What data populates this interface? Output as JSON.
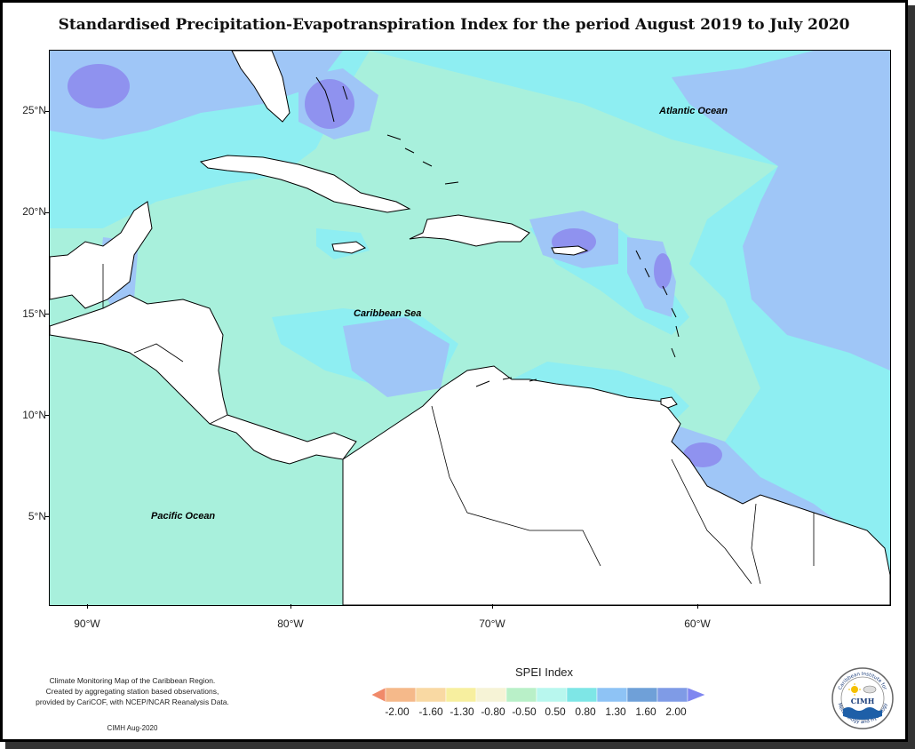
{
  "title": "Standardised Precipitation-Evapotranspiration Index for the period August 2019 to July 2020",
  "map": {
    "labels": {
      "atlantic": "Atlantic Ocean",
      "caribbean": "Caribbean Sea",
      "pacific": "Pacific Ocean"
    },
    "lat_ticks": [
      "25°N",
      "20°N",
      "15°N",
      "10°N",
      "5°N"
    ],
    "lon_ticks": [
      "90°W",
      "80°W",
      "70°W",
      "60°W"
    ]
  },
  "legend": {
    "title": "SPEI Index",
    "labels": [
      "-2.00",
      "-1.60",
      "-1.30",
      "-0.80",
      "-0.50",
      "0.50",
      "0.80",
      "1.30",
      "1.60",
      "2.00"
    ],
    "colors": [
      "#f08a6a",
      "#f5b98a",
      "#f9d9a3",
      "#f7ef9f",
      "#f6f3d6",
      "#b9f0c8",
      "#b8f7ee",
      "#7ee6e6",
      "#8ec3f5",
      "#6fa0d8",
      "#7f86f0"
    ]
  },
  "credit": {
    "line1": "Climate Monitoring Map of the Caribbean Region.",
    "line2": "Created by aggregating station based observations,",
    "line3": "provided by CariCOF, with NCEP/NCAR Reanalysis Data.",
    "date": "CIMH Aug-2020"
  },
  "logo": {
    "name": "CIMH",
    "text_top": "Caribbean Institute for",
    "text_bottom": "Meteorology and Hydrology"
  },
  "colors": {
    "wet_light": "#a8f0dc",
    "wet_cyan": "#8eeef2",
    "wet_blue": "#9fc6f7",
    "wet_violet": "#8f92ef",
    "dry": "#f07070",
    "land": "#ffffff"
  }
}
